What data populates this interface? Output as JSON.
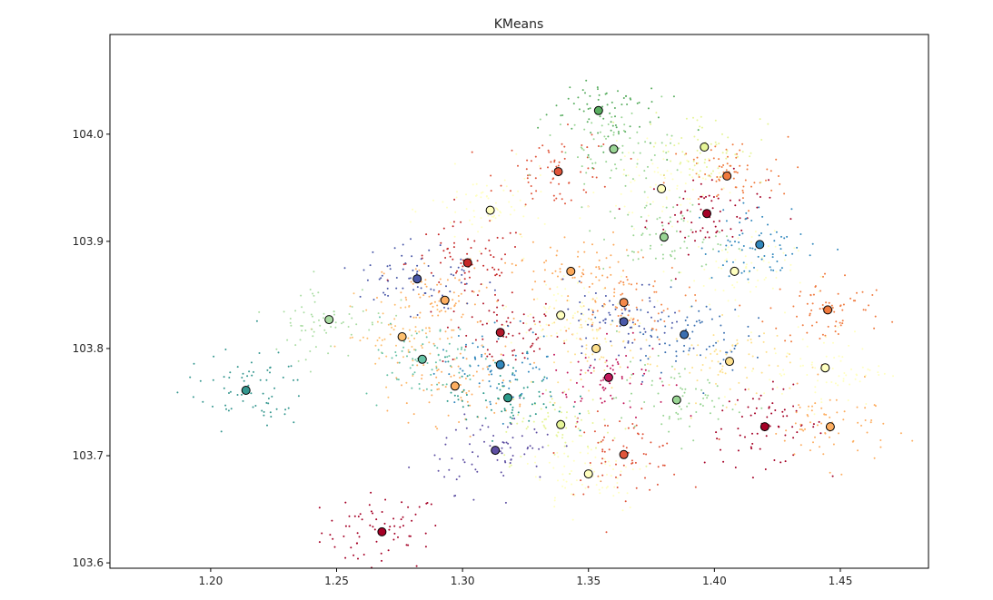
{
  "chart_data": {
    "type": "scatter",
    "title": "KMeans",
    "xlabel": "",
    "ylabel": "",
    "xlim": [
      1.16,
      1.485
    ],
    "ylim": [
      103.595,
      104.093
    ],
    "xticks": [
      1.2,
      1.25,
      1.3,
      1.35,
      1.4,
      1.45
    ],
    "xtick_labels": [
      "1.20",
      "1.25",
      "1.30",
      "1.35",
      "1.40",
      "1.45"
    ],
    "yticks": [
      103.6,
      103.7,
      103.8,
      103.9,
      104.0
    ],
    "ytick_labels": [
      "103.6",
      "103.7",
      "103.8",
      "103.9",
      "104.0"
    ],
    "grid": false,
    "legend": "none",
    "centroids": [
      {
        "x": 1.268,
        "y": 103.629,
        "color": "#a50026"
      },
      {
        "x": 1.315,
        "y": 103.815,
        "color": "#b2182b"
      },
      {
        "x": 1.358,
        "y": 103.773,
        "color": "#c2185b"
      },
      {
        "x": 1.397,
        "y": 103.926,
        "color": "#a50026"
      },
      {
        "x": 1.42,
        "y": 103.727,
        "color": "#a50026"
      },
      {
        "x": 1.302,
        "y": 103.88,
        "color": "#c62828"
      },
      {
        "x": 1.338,
        "y": 103.965,
        "color": "#e0553a"
      },
      {
        "x": 1.364,
        "y": 103.701,
        "color": "#e0553a"
      },
      {
        "x": 1.405,
        "y": 103.961,
        "color": "#f07a3e"
      },
      {
        "x": 1.445,
        "y": 103.836,
        "color": "#f07a3e"
      },
      {
        "x": 1.364,
        "y": 103.843,
        "color": "#f4894a"
      },
      {
        "x": 1.343,
        "y": 103.872,
        "color": "#fca95b"
      },
      {
        "x": 1.293,
        "y": 103.845,
        "color": "#fdae61"
      },
      {
        "x": 1.297,
        "y": 103.765,
        "color": "#fdae61"
      },
      {
        "x": 1.276,
        "y": 103.811,
        "color": "#fdbf6f"
      },
      {
        "x": 1.353,
        "y": 103.8,
        "color": "#fee08b"
      },
      {
        "x": 1.406,
        "y": 103.788,
        "color": "#fee08b"
      },
      {
        "x": 1.446,
        "y": 103.727,
        "color": "#fdae61"
      },
      {
        "x": 1.311,
        "y": 103.929,
        "color": "#ffffbf"
      },
      {
        "x": 1.379,
        "y": 103.949,
        "color": "#ffffbf"
      },
      {
        "x": 1.396,
        "y": 103.988,
        "color": "#e6f598"
      },
      {
        "x": 1.408,
        "y": 103.872,
        "color": "#ffffbf"
      },
      {
        "x": 1.339,
        "y": 103.831,
        "color": "#ffffbf"
      },
      {
        "x": 1.444,
        "y": 103.782,
        "color": "#ffffbf"
      },
      {
        "x": 1.35,
        "y": 103.683,
        "color": "#ffffbf"
      },
      {
        "x": 1.339,
        "y": 103.729,
        "color": "#e6f598"
      },
      {
        "x": 1.247,
        "y": 103.827,
        "color": "#abdda4"
      },
      {
        "x": 1.284,
        "y": 103.79,
        "color": "#66c2a5"
      },
      {
        "x": 1.36,
        "y": 103.986,
        "color": "#99d594"
      },
      {
        "x": 1.38,
        "y": 103.904,
        "color": "#99d594"
      },
      {
        "x": 1.385,
        "y": 103.752,
        "color": "#99d594"
      },
      {
        "x": 1.354,
        "y": 104.022,
        "color": "#5aae61"
      },
      {
        "x": 1.214,
        "y": 103.761,
        "color": "#35978f"
      },
      {
        "x": 1.318,
        "y": 103.754,
        "color": "#2b9a8a"
      },
      {
        "x": 1.315,
        "y": 103.785,
        "color": "#3288bd"
      },
      {
        "x": 1.418,
        "y": 103.897,
        "color": "#3288bd"
      },
      {
        "x": 1.388,
        "y": 103.813,
        "color": "#3a6fb0"
      },
      {
        "x": 1.282,
        "y": 103.865,
        "color": "#4a58a8"
      },
      {
        "x": 1.364,
        "y": 103.825,
        "color": "#4a58a8"
      },
      {
        "x": 1.313,
        "y": 103.705,
        "color": "#5e4fa2"
      }
    ]
  }
}
